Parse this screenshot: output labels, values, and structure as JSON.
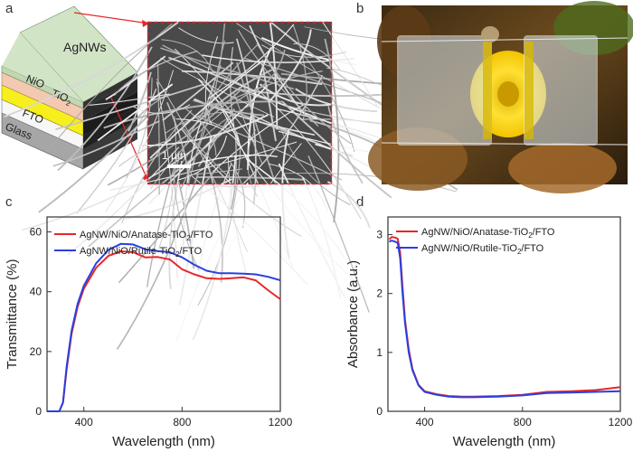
{
  "panels": {
    "a": "a",
    "b": "b",
    "c": "c",
    "d": "d"
  },
  "panel_a": {
    "layers": [
      "AgNWs",
      "NiO",
      "TiO",
      "FTO",
      "Glass"
    ],
    "tio2_sub": "2",
    "scale_bar": "1 μm"
  },
  "chart_data": [
    {
      "type": "line",
      "xlabel": "Wavelength (nm)",
      "ylabel": "Transmittance (%)",
      "xlim": [
        250,
        1200
      ],
      "ylim": [
        0,
        65
      ],
      "xticks": [
        400,
        800,
        1200
      ],
      "yticks": [
        0,
        20,
        40,
        60
      ],
      "legend_placement": "top-left",
      "series": [
        {
          "name": "AgNW/NiO/Anatase-TiO2/FTO",
          "legend_main": "AgNW/NiO/Anatase-TiO",
          "legend_sub": "2",
          "legend_tail": "/FTO",
          "color": "#e8262a",
          "x": [
            250,
            300,
            315,
            330,
            350,
            375,
            400,
            450,
            500,
            550,
            600,
            650,
            700,
            750,
            800,
            850,
            900,
            950,
            1000,
            1050,
            1100,
            1150,
            1200
          ],
          "y": [
            0,
            0,
            3,
            14,
            26,
            35,
            41,
            48,
            52,
            53.5,
            53.2,
            51.5,
            51.6,
            50.8,
            47.5,
            45.8,
            44.5,
            44.3,
            44.5,
            44.8,
            43.8,
            40.5,
            37.5
          ]
        },
        {
          "name": "AgNW/NiO/Rutile-TiO2/FTO",
          "legend_main": "AgNW/NiO/Rutile-TiO",
          "legend_sub": "2",
          "legend_tail": "/FTO",
          "color": "#2a3fe0",
          "x": [
            250,
            300,
            315,
            330,
            350,
            375,
            400,
            450,
            500,
            550,
            600,
            650,
            700,
            750,
            800,
            850,
            900,
            950,
            1000,
            1050,
            1100,
            1150,
            1200
          ],
          "y": [
            0,
            0,
            3,
            15,
            27,
            36,
            42,
            49.5,
            54,
            56,
            55.8,
            54.2,
            53.6,
            53.2,
            51.5,
            49,
            47,
            46.2,
            46.2,
            46,
            45.8,
            45,
            43.8
          ]
        }
      ]
    },
    {
      "type": "line",
      "xlabel": "Wavelength (nm)",
      "ylabel": "Absorbance (a.u.)",
      "xlim": [
        250,
        1200
      ],
      "ylim": [
        0,
        3.3
      ],
      "xticks": [
        400,
        800,
        1200
      ],
      "yticks": [
        0,
        1,
        2,
        3
      ],
      "legend_placement": "top-right",
      "series": [
        {
          "name": "AgNW/NiO/Anatase-TiO2/FTO",
          "legend_main": "AgNW/NiO/Anatase-TiO",
          "legend_sub": "2",
          "legend_tail": "/FTO",
          "color": "#e8262a",
          "x": [
            255,
            265,
            280,
            290,
            300,
            310,
            320,
            335,
            350,
            375,
            400,
            450,
            500,
            550,
            600,
            700,
            800,
            900,
            1000,
            1100,
            1200
          ],
          "y": [
            2.92,
            2.96,
            2.95,
            2.93,
            2.7,
            2.1,
            1.55,
            1.05,
            0.72,
            0.45,
            0.34,
            0.29,
            0.26,
            0.25,
            0.25,
            0.26,
            0.28,
            0.33,
            0.34,
            0.36,
            0.41
          ]
        },
        {
          "name": "AgNW/NiO/Rutile-TiO2/FTO",
          "legend_main": "AgNW/NiO/Rutile-TiO",
          "legend_sub": "2",
          "legend_tail": "/FTO",
          "color": "#2a3fe0",
          "x": [
            255,
            265,
            280,
            290,
            300,
            310,
            320,
            335,
            350,
            375,
            400,
            450,
            500,
            550,
            600,
            700,
            800,
            900,
            1000,
            1100,
            1200
          ],
          "y": [
            2.88,
            2.9,
            2.88,
            2.86,
            2.6,
            2.0,
            1.5,
            1.0,
            0.7,
            0.44,
            0.33,
            0.28,
            0.25,
            0.24,
            0.24,
            0.25,
            0.27,
            0.31,
            0.32,
            0.33,
            0.34
          ]
        }
      ]
    }
  ]
}
